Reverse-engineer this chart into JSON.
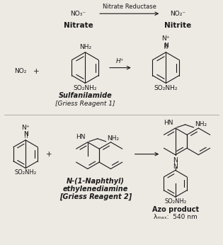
{
  "bg_color": "#ede9e3",
  "text_color": "#1a1a1a",
  "figsize": [
    3.15,
    3.46
  ],
  "dpi": 100,
  "top_reaction": {
    "nitrate_label": "NO₃⁻",
    "nitrate_name": "Nitrate",
    "nitrite_label": "NO₂⁻",
    "nitrite_name": "Nitrite",
    "enzyme": "Nitrate Reductase"
  },
  "middle_reaction": {
    "reactant1": "NO₂",
    "plus": "+",
    "arrow_label": "H⁺",
    "reagent1_name": "Sulfanilamide",
    "reagent1_bracket": "[Griess Reagent 1]"
  },
  "bottom_reaction": {
    "plus": "+",
    "arrow": "→",
    "reagent2_line1": "N-(1-Naphthyl)",
    "reagent2_line2": "ethylenediamine",
    "reagent2_line3": "[Griess Reagent 2]",
    "product_name": "Azo product",
    "lambda_label": "λₘₐₓ:  540 nm"
  }
}
